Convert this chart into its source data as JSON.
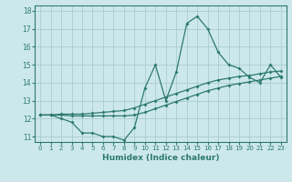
{
  "title": "",
  "xlabel": "Humidex (Indice chaleur)",
  "bg_color": "#cce8ea",
  "line_color": "#2d7a6e",
  "grid_color": "#aacdd0",
  "xlim": [
    -0.5,
    23.5
  ],
  "ylim": [
    10.7,
    18.3
  ],
  "xticks": [
    0,
    1,
    2,
    3,
    4,
    5,
    6,
    7,
    8,
    9,
    10,
    11,
    12,
    13,
    14,
    15,
    16,
    17,
    18,
    19,
    20,
    21,
    22,
    23
  ],
  "yticks": [
    11,
    12,
    13,
    14,
    15,
    16,
    17,
    18
  ],
  "series1_x": [
    0,
    1,
    2,
    3,
    4,
    5,
    6,
    7,
    8,
    9,
    10,
    11,
    12,
    13,
    14,
    15,
    16,
    17,
    18,
    19,
    20,
    21,
    22,
    23
  ],
  "series1_y": [
    12.2,
    12.2,
    12.0,
    11.8,
    11.2,
    11.2,
    11.0,
    11.0,
    10.8,
    11.5,
    13.7,
    15.0,
    13.0,
    14.6,
    17.3,
    17.7,
    17.0,
    15.7,
    15.0,
    14.8,
    14.3,
    14.0,
    15.0,
    14.3
  ],
  "series2_x": [
    0,
    1,
    2,
    3,
    4,
    5,
    6,
    7,
    8,
    9,
    10,
    11,
    12,
    13,
    14,
    15,
    16,
    17,
    18,
    19,
    20,
    21,
    22,
    23
  ],
  "series2_y": [
    12.2,
    12.2,
    12.2,
    12.15,
    12.15,
    12.15,
    12.15,
    12.15,
    12.15,
    12.2,
    12.35,
    12.55,
    12.75,
    12.95,
    13.15,
    13.35,
    13.55,
    13.7,
    13.85,
    13.95,
    14.05,
    14.15,
    14.25,
    14.35
  ],
  "series3_x": [
    0,
    1,
    2,
    3,
    4,
    5,
    6,
    7,
    8,
    9,
    10,
    11,
    12,
    13,
    14,
    15,
    16,
    17,
    18,
    19,
    20,
    21,
    22,
    23
  ],
  "series3_y": [
    12.2,
    12.2,
    12.25,
    12.25,
    12.25,
    12.3,
    12.35,
    12.4,
    12.45,
    12.6,
    12.8,
    13.0,
    13.2,
    13.4,
    13.6,
    13.8,
    14.0,
    14.15,
    14.25,
    14.35,
    14.4,
    14.5,
    14.6,
    14.65
  ]
}
